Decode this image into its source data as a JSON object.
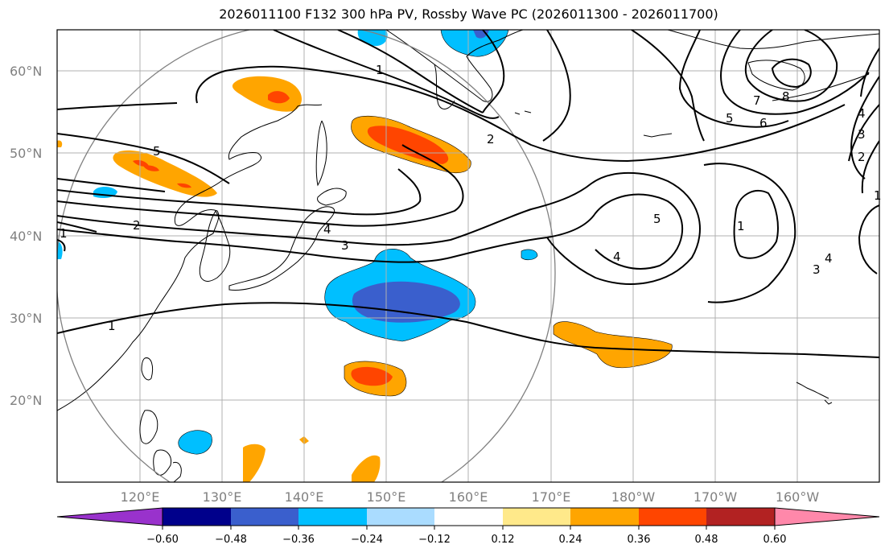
{
  "title": "2026011100 F132 300 hPa PV, Rossby Wave PC (2026011300 - 2026011700)",
  "map": {
    "projection": "plate-carree",
    "lon_range": [
      110,
      210
    ],
    "lat_range": [
      10,
      65
    ],
    "lat_ticks": [
      "20°N",
      "30°N",
      "40°N",
      "50°N",
      "60°N"
    ],
    "lon_ticks": [
      "120°E",
      "130°E",
      "140°E",
      "150°E",
      "160°E",
      "170°E",
      "180°W",
      "170°W",
      "160°W"
    ],
    "gridlines": true,
    "circle_color": "#808080",
    "contour_labels": [
      "1",
      "1",
      "1",
      "2",
      "2",
      "3",
      "3",
      "4",
      "4",
      "5",
      "5",
      "6",
      "7",
      "8",
      "1",
      "2",
      "3",
      "4",
      "1"
    ]
  },
  "colorbar": {
    "ticks": [
      "−0.60",
      "−0.48",
      "−0.36",
      "−0.24",
      "−0.12",
      "0.12",
      "0.24",
      "0.36",
      "0.48",
      "0.60"
    ],
    "colors": [
      "#9932cc",
      "#00008b",
      "#3a5fcd",
      "#00bfff",
      "#aadcff",
      "#ffffff",
      "#ffe98a",
      "#ffa500",
      "#ff4500",
      "#b22222",
      "#ff88aa"
    ]
  }
}
